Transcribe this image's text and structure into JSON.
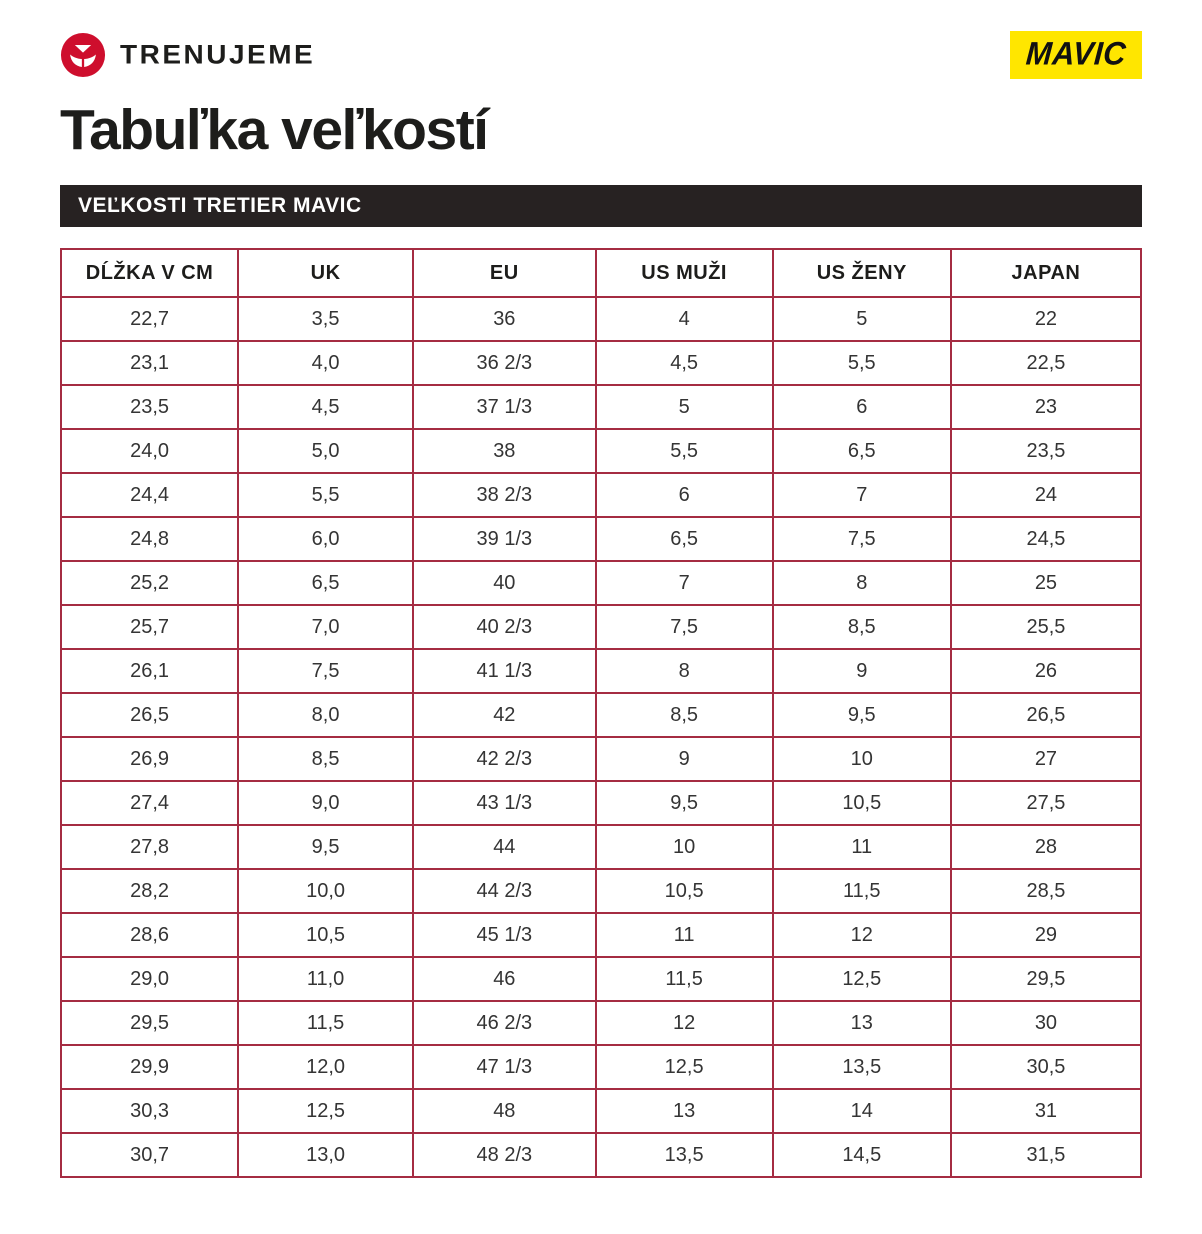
{
  "brand": {
    "trenujeme_wordmark": "TRENUJEME",
    "mavic_wordmark": "MAVIC"
  },
  "page": {
    "title": "Tabuľka veľkostí",
    "section_header": "VEĽKOSTI TRETIER MAVIC"
  },
  "colors": {
    "brand_red": "#CE0E2D",
    "mavic_yellow": "#FFE600",
    "table_border": "#A52C42",
    "section_bar_bg": "#272222"
  },
  "table": {
    "headers": [
      "DĹŽKA V CM",
      "UK",
      "EU",
      "US MUŽI",
      "US ŽENY",
      "JAPAN"
    ],
    "rows": [
      [
        "22,7",
        "3,5",
        "36",
        "4",
        "5",
        "22"
      ],
      [
        "23,1",
        "4,0",
        "36 2/3",
        "4,5",
        "5,5",
        "22,5"
      ],
      [
        "23,5",
        "4,5",
        "37 1/3",
        "5",
        "6",
        "23"
      ],
      [
        "24,0",
        "5,0",
        "38",
        "5,5",
        "6,5",
        "23,5"
      ],
      [
        "24,4",
        "5,5",
        "38 2/3",
        "6",
        "7",
        "24"
      ],
      [
        "24,8",
        "6,0",
        "39 1/3",
        "6,5",
        "7,5",
        "24,5"
      ],
      [
        "25,2",
        "6,5",
        "40",
        "7",
        "8",
        "25"
      ],
      [
        "25,7",
        "7,0",
        "40 2/3",
        "7,5",
        "8,5",
        "25,5"
      ],
      [
        "26,1",
        "7,5",
        "41 1/3",
        "8",
        "9",
        "26"
      ],
      [
        "26,5",
        "8,0",
        "42",
        "8,5",
        "9,5",
        "26,5"
      ],
      [
        "26,9",
        "8,5",
        "42 2/3",
        "9",
        "10",
        "27"
      ],
      [
        "27,4",
        "9,0",
        "43 1/3",
        "9,5",
        "10,5",
        "27,5"
      ],
      [
        "27,8",
        "9,5",
        "44",
        "10",
        "11",
        "28"
      ],
      [
        "28,2",
        "10,0",
        "44 2/3",
        "10,5",
        "11,5",
        "28,5"
      ],
      [
        "28,6",
        "10,5",
        "45 1/3",
        "11",
        "12",
        "29"
      ],
      [
        "29,0",
        "11,0",
        "46",
        "11,5",
        "12,5",
        "29,5"
      ],
      [
        "29,5",
        "11,5",
        "46 2/3",
        "12",
        "13",
        "30"
      ],
      [
        "29,9",
        "12,0",
        "47 1/3",
        "12,5",
        "13,5",
        "30,5"
      ],
      [
        "30,3",
        "12,5",
        "48",
        "13",
        "14",
        "31"
      ],
      [
        "30,7",
        "13,0",
        "48 2/3",
        "13,5",
        "14,5",
        "31,5"
      ]
    ]
  }
}
